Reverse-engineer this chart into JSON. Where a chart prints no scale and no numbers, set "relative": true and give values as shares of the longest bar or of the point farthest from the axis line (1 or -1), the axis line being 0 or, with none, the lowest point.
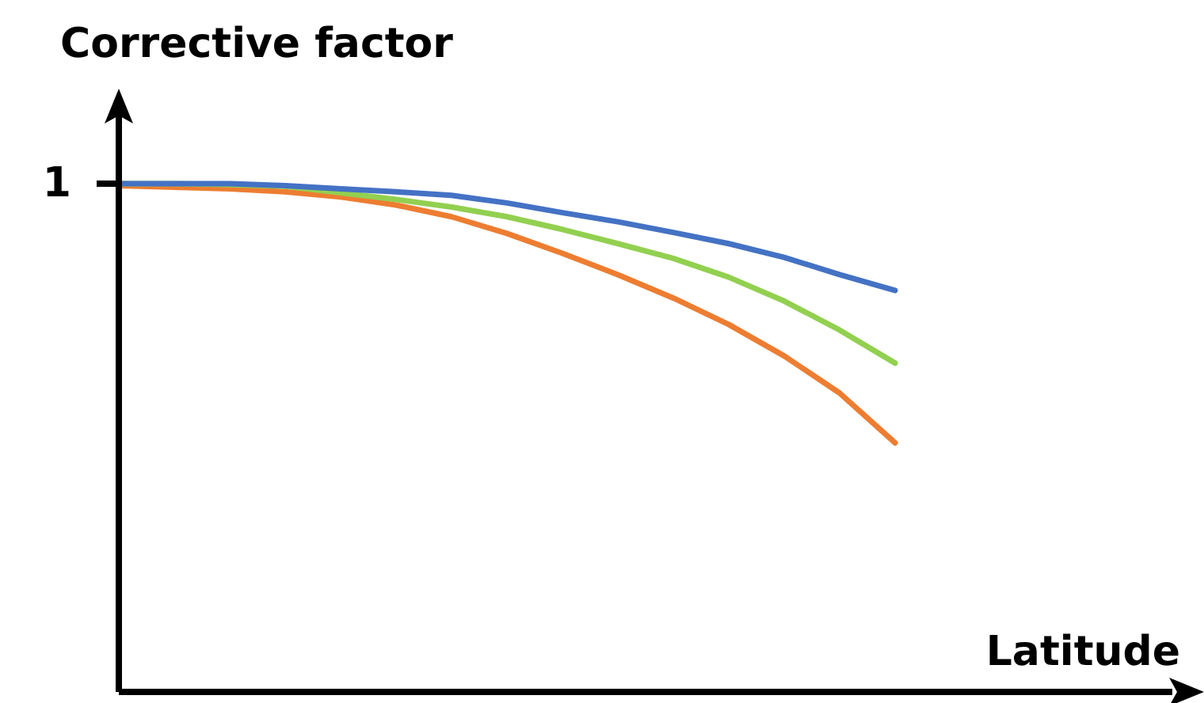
{
  "chart_data": {
    "type": "line",
    "title": "Corrective factor",
    "xlabel": "Latitude",
    "relative": true,
    "legend": false,
    "marker": "none",
    "line_style": "solid",
    "categories": [
      null,
      null,
      null,
      null,
      null,
      null,
      null,
      null,
      null,
      null,
      null,
      null,
      null,
      null,
      null,
      null,
      null,
      null,
      null,
      null
    ],
    "annotations": [
      "1"
    ],
    "series": [
      {
        "color": "#4472c4",
        "values": [
          1.0,
          1.0,
          1.0,
          0.996,
          0.99,
          0.984,
          0.977,
          0.962,
          0.943,
          0.925,
          0.904,
          0.882,
          0.855,
          0.821,
          0.79,
          null,
          null,
          null,
          null,
          null
        ]
      },
      {
        "color": "#92d050",
        "values": [
          1.0,
          1.0,
          0.998,
          0.995,
          0.982,
          0.969,
          0.954,
          0.935,
          0.91,
          0.882,
          0.853,
          0.816,
          0.769,
          0.712,
          0.647,
          null,
          null,
          null,
          null,
          null
        ]
      },
      {
        "color": "#ed7d31",
        "values": [
          0.996,
          0.993,
          0.99,
          0.984,
          0.974,
          0.958,
          0.935,
          0.902,
          0.863,
          0.821,
          0.775,
          0.723,
          0.661,
          0.588,
          0.49,
          null,
          null,
          null,
          null,
          null
        ]
      }
    ]
  }
}
